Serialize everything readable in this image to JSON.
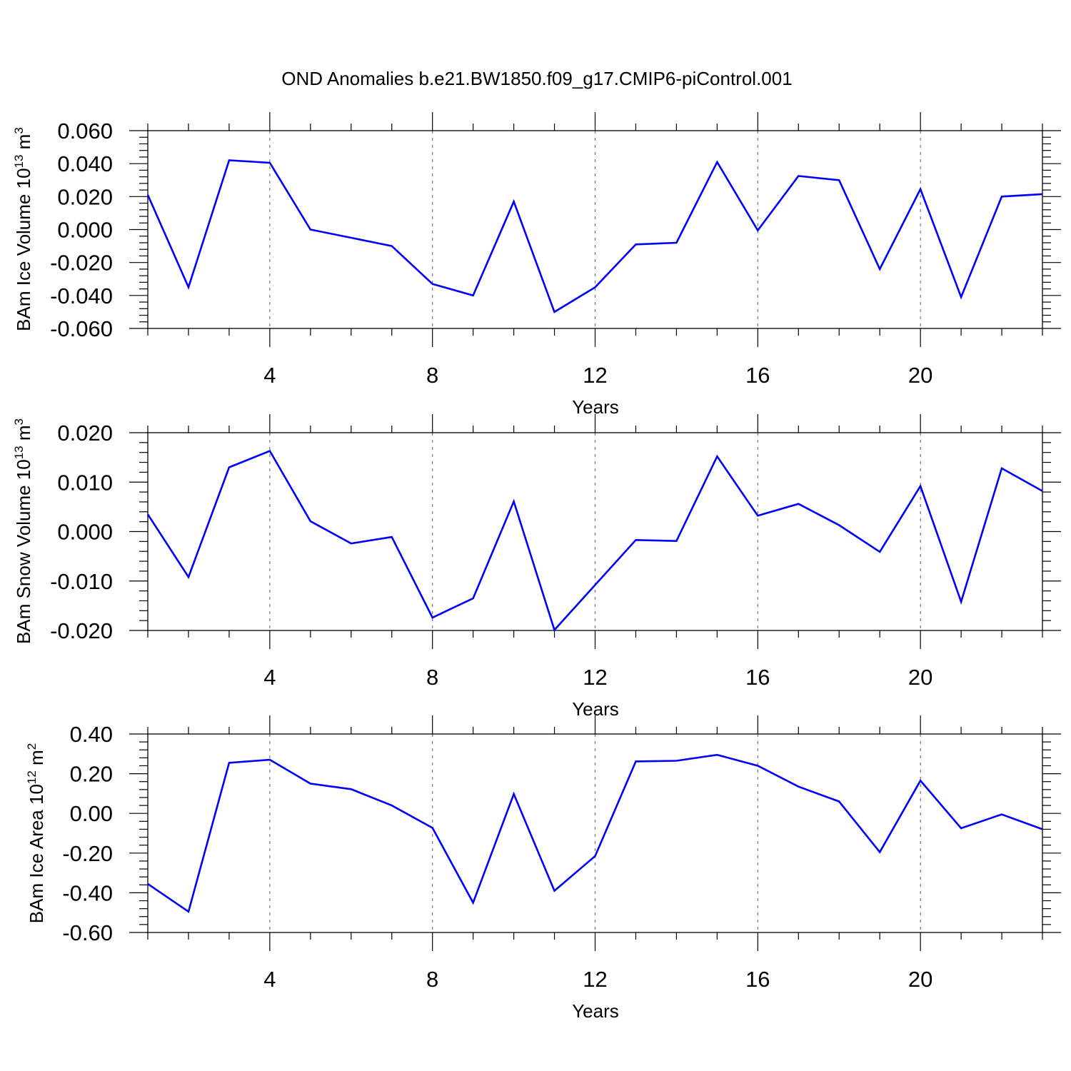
{
  "title": "OND Anomalies b.e21.BW1850.f09_g17.CMIP6-piControl.001",
  "colors": {
    "series": "#0000ff",
    "grid": "#777777",
    "axis": "#000000"
  },
  "chart_data": [
    {
      "type": "line",
      "ylabel": {
        "main": "BAm Ice Volume 10",
        "sup": "13",
        "unit": " m",
        "unit_sup": "3"
      },
      "xlabel": "Years",
      "xlim": [
        1,
        23
      ],
      "ylim": [
        -0.06,
        0.06
      ],
      "xticks": [
        4,
        8,
        12,
        16,
        20
      ],
      "xtick_labels": [
        "4",
        "8",
        "12",
        "16",
        "20"
      ],
      "yticks": [
        -0.06,
        -0.04,
        -0.02,
        0.0,
        0.02,
        0.04,
        0.06
      ],
      "ytick_labels": [
        "-0.060",
        "-0.040",
        "-0.020",
        "0.000",
        "0.020",
        "0.040",
        "0.060"
      ],
      "grid": "vertical dashed at major x ticks",
      "series": [
        {
          "name": "BAm Ice Volume",
          "x": [
            1,
            2,
            3,
            4,
            5,
            6,
            7,
            8,
            9,
            10,
            11,
            12,
            13,
            14,
            15,
            16,
            17,
            18,
            19,
            20,
            21,
            22,
            23
          ],
          "values": [
            0.021,
            -0.035,
            0.042,
            0.0405,
            0.0,
            -0.005,
            -0.01,
            -0.033,
            -0.04,
            0.017,
            -0.05,
            -0.035,
            -0.009,
            -0.008,
            0.041,
            -0.0005,
            0.0325,
            0.03,
            -0.024,
            0.0245,
            -0.041,
            0.02,
            0.0215
          ]
        }
      ]
    },
    {
      "type": "line",
      "ylabel": {
        "main": "BAm Snow Volume 10",
        "sup": "13",
        "unit": " m",
        "unit_sup": "3"
      },
      "xlabel": "Years",
      "xlim": [
        1,
        23
      ],
      "ylim": [
        -0.02,
        0.02
      ],
      "xticks": [
        4,
        8,
        12,
        16,
        20
      ],
      "xtick_labels": [
        "4",
        "8",
        "12",
        "16",
        "20"
      ],
      "yticks": [
        -0.02,
        -0.01,
        0.0,
        0.01,
        0.02
      ],
      "ytick_labels": [
        "-0.020",
        "-0.010",
        "0.000",
        "0.010",
        "0.020"
      ],
      "grid": "vertical dashed at major x ticks",
      "series": [
        {
          "name": "BAm Snow Volume",
          "x": [
            1,
            2,
            3,
            4,
            5,
            6,
            7,
            8,
            9,
            10,
            11,
            12,
            13,
            14,
            15,
            16,
            17,
            18,
            19,
            20,
            21,
            22,
            23
          ],
          "values": [
            0.0035,
            -0.0092,
            0.013,
            0.0163,
            0.0021,
            -0.0024,
            -0.0011,
            -0.0174,
            -0.0135,
            0.0061,
            -0.0199,
            -0.0108,
            -0.0017,
            -0.0019,
            0.0152,
            0.0032,
            0.0056,
            0.0013,
            -0.0041,
            0.0092,
            -0.0142,
            0.0128,
            0.0082
          ]
        }
      ]
    },
    {
      "type": "line",
      "ylabel": {
        "main": "BAm Ice Area 10",
        "sup": "12",
        "unit": " m",
        "unit_sup": "2"
      },
      "xlabel": "Years",
      "xlim": [
        1,
        23
      ],
      "ylim": [
        -0.6,
        0.4
      ],
      "xticks": [
        4,
        8,
        12,
        16,
        20
      ],
      "xtick_labels": [
        "4",
        "8",
        "12",
        "16",
        "20"
      ],
      "yticks": [
        -0.6,
        -0.4,
        -0.2,
        0.0,
        0.2,
        0.4
      ],
      "ytick_labels": [
        "-0.60",
        "-0.40",
        "-0.20",
        "0.00",
        "0.20",
        "0.40"
      ],
      "grid": "vertical dashed at major x ticks",
      "series": [
        {
          "name": "BAm Ice Area",
          "x": [
            1,
            2,
            3,
            4,
            5,
            6,
            7,
            8,
            9,
            10,
            11,
            12,
            13,
            14,
            15,
            16,
            17,
            18,
            19,
            20,
            21,
            22,
            23
          ],
          "values": [
            -0.355,
            -0.495,
            0.255,
            0.27,
            0.15,
            0.122,
            0.04,
            -0.073,
            -0.45,
            0.098,
            -0.39,
            -0.215,
            0.262,
            0.265,
            0.295,
            0.24,
            0.135,
            0.06,
            -0.195,
            0.165,
            -0.075,
            -0.005,
            -0.08
          ]
        }
      ]
    }
  ]
}
